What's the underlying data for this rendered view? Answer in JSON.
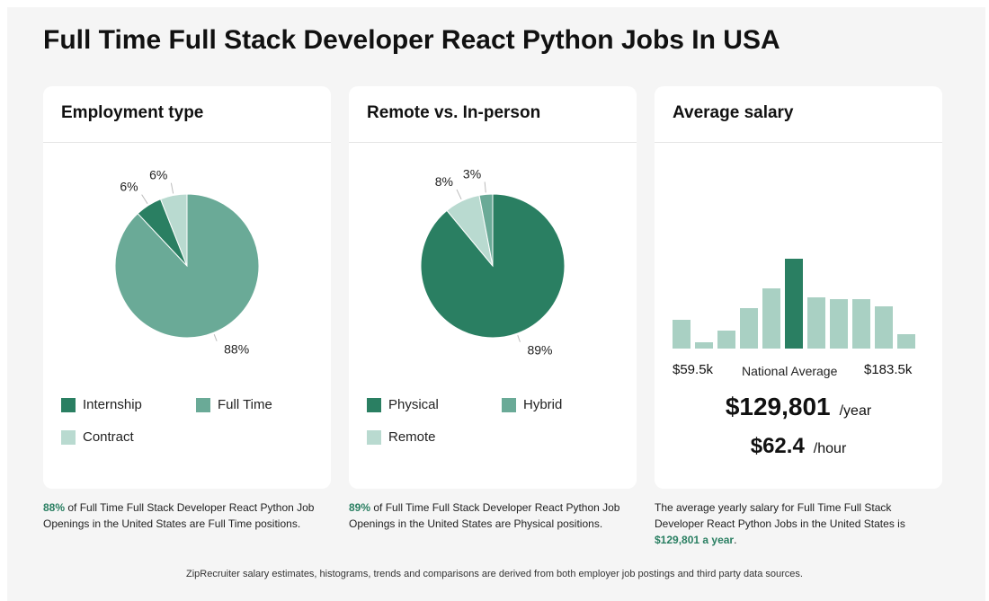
{
  "page": {
    "title": "Full Time Full Stack Developer React Python Jobs In USA",
    "footer": "ZipRecruiter salary estimates, histograms, trends and comparisons are derived from both employer job postings and third party data sources."
  },
  "colors": {
    "dark_green": "#2a7f62",
    "mid_green": "#6aaa97",
    "light_green": "#b9dad0",
    "hist_bar": "#a9d0c3",
    "hist_highlight": "#2a7f62"
  },
  "employment": {
    "title": "Employment type",
    "legend": [
      "Internship",
      "Full Time",
      "Contract"
    ],
    "caption_pct": "88%",
    "caption_text": " of Full Time Full Stack Developer React Python Job Openings in the United States are Full Time positions."
  },
  "remote": {
    "title": "Remote vs. In-person",
    "legend": [
      "Physical",
      "Hybrid",
      "Remote"
    ],
    "caption_pct": "89%",
    "caption_text": " of Full Time Full Stack Developer React Python Job Openings in the United States are Physical positions."
  },
  "salary": {
    "title": "Average salary",
    "min_label": "$59.5k",
    "mid_label": "National Average",
    "max_label": "$183.5k",
    "yearly": "$129,801",
    "yearly_unit": "/year",
    "hourly": "$62.4",
    "hourly_unit": "/hour",
    "caption_text": "The average yearly salary for Full Time Full Stack Developer React Python Jobs in the United States is ",
    "caption_value": "$129,801 a year",
    "caption_end": "."
  },
  "chart_data": [
    {
      "type": "pie",
      "title": "Employment type",
      "slices": [
        {
          "label": "Internship",
          "value": 6,
          "display": "6%",
          "color": "#2a7f62"
        },
        {
          "label": "Full Time",
          "value": 88,
          "display": "88%",
          "color": "#6aaa97"
        },
        {
          "label": "Contract",
          "value": 6,
          "display": "6%",
          "color": "#b9dad0"
        }
      ],
      "draw_order": [
        "Full Time",
        "Internship",
        "Contract"
      ]
    },
    {
      "type": "pie",
      "title": "Remote vs. In-person",
      "slices": [
        {
          "label": "Physical",
          "value": 89,
          "display": "89%",
          "color": "#2a7f62"
        },
        {
          "label": "Hybrid",
          "value": 3,
          "display": "3%",
          "color": "#6aaa97"
        },
        {
          "label": "Remote",
          "value": 8,
          "display": "8%",
          "color": "#b9dad0"
        }
      ],
      "draw_order": [
        "Physical",
        "Remote",
        "Hybrid"
      ]
    },
    {
      "type": "bar",
      "title": "Average salary",
      "xlabel_min": "$59.5k",
      "xlabel_max": "$183.5k",
      "values": [
        32,
        7,
        20,
        45,
        67,
        100,
        57,
        55,
        55,
        47,
        16
      ],
      "highlight_index": 5
    }
  ]
}
